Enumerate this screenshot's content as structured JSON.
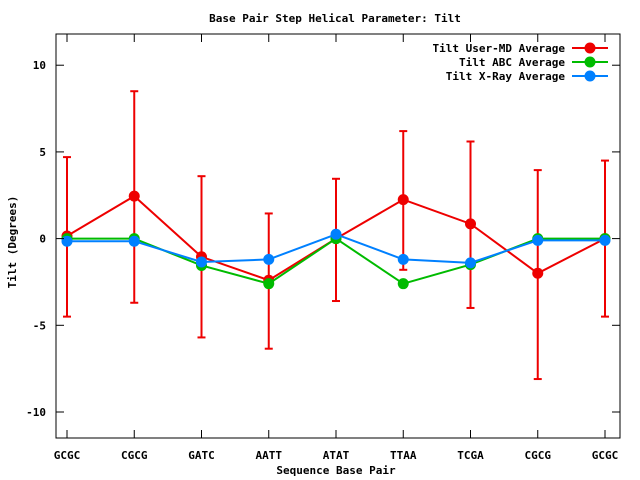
{
  "chart_data": {
    "type": "line",
    "title": "Base Pair Step Helical Parameter: Tilt",
    "xlabel": "Sequence Base Pair",
    "ylabel": "Tilt (Degrees)",
    "categories": [
      "GCGC",
      "CGCG",
      "GATC",
      "AATT",
      "ATAT",
      "TTAA",
      "TCGA",
      "CGCG",
      "GCGC"
    ],
    "ylim": [
      -11.5,
      11.8
    ],
    "yticks": [
      -10,
      -5,
      0,
      5,
      10
    ],
    "legend_position": "top-right",
    "grid": false,
    "series": [
      {
        "name": "Tilt User-MD Average",
        "color": "#ee0000",
        "values": [
          0.15,
          2.45,
          -1.05,
          -2.4,
          0.0,
          2.25,
          0.85,
          -2.0,
          0.0
        ],
        "error_low": [
          -4.5,
          -3.7,
          -5.7,
          -6.35,
          -3.6,
          -1.8,
          -4.0,
          -8.1,
          -4.5
        ],
        "error_high": [
          4.7,
          8.5,
          3.6,
          1.45,
          3.45,
          6.2,
          5.6,
          3.95,
          4.5
        ]
      },
      {
        "name": "Tilt ABC Average",
        "color": "#00bb00",
        "values": [
          0.0,
          0.0,
          -1.55,
          -2.6,
          0.0,
          -2.6,
          -1.5,
          0.0,
          0.0
        ]
      },
      {
        "name": "Tilt X-Ray Average",
        "color": "#0080ff",
        "values": [
          -0.15,
          -0.15,
          -1.35,
          -1.2,
          0.25,
          -1.2,
          -1.4,
          -0.1,
          -0.1
        ]
      }
    ]
  }
}
